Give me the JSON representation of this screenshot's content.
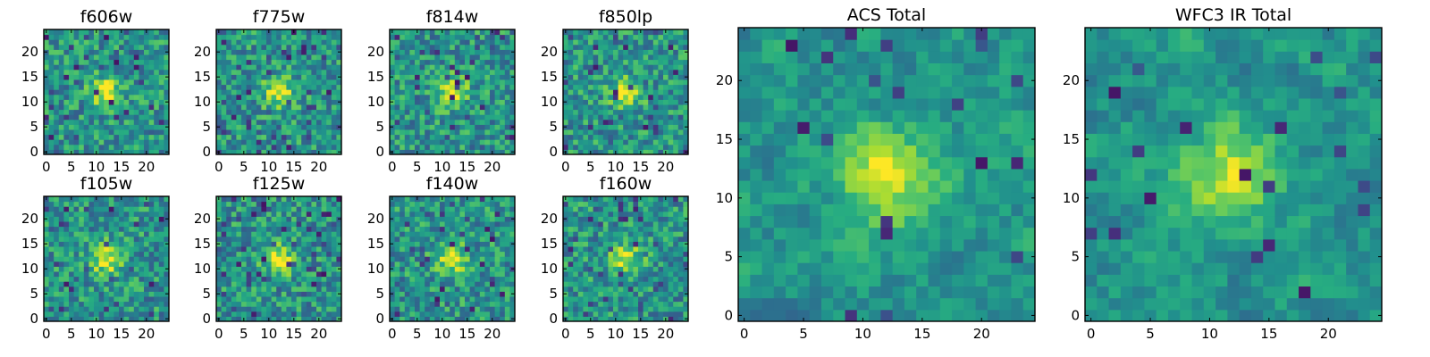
{
  "chart_data": [
    {
      "type": "heatmap",
      "title": "f606w",
      "xlim": [
        0,
        24
      ],
      "ylim": [
        0,
        24
      ],
      "xticks": [
        0,
        5,
        10,
        15,
        20
      ],
      "yticks": [
        0,
        5,
        10,
        15,
        20
      ],
      "grid_size": 25,
      "colormap": "viridis",
      "source_peak": [
        12,
        12
      ],
      "seed": 11
    },
    {
      "type": "heatmap",
      "title": "f775w",
      "xlim": [
        0,
        24
      ],
      "ylim": [
        0,
        24
      ],
      "xticks": [
        0,
        5,
        10,
        15,
        20
      ],
      "yticks": [
        0,
        5,
        10,
        15,
        20
      ],
      "grid_size": 25,
      "colormap": "viridis",
      "source_peak": [
        12,
        12
      ],
      "seed": 23
    },
    {
      "type": "heatmap",
      "title": "f814w",
      "xlim": [
        0,
        24
      ],
      "ylim": [
        0,
        24
      ],
      "xticks": [
        0,
        5,
        10,
        15,
        20
      ],
      "yticks": [
        0,
        5,
        10,
        15,
        20
      ],
      "grid_size": 25,
      "colormap": "viridis",
      "source_peak": [
        12,
        12
      ],
      "seed": 37
    },
    {
      "type": "heatmap",
      "title": "f850lp",
      "xlim": [
        0,
        24
      ],
      "ylim": [
        0,
        24
      ],
      "xticks": [
        0,
        5,
        10,
        15,
        20
      ],
      "yticks": [
        0,
        5,
        10,
        15,
        20
      ],
      "grid_size": 25,
      "colormap": "viridis",
      "source_peak": [
        12,
        12
      ],
      "seed": 41
    },
    {
      "type": "heatmap",
      "title": "f105w",
      "xlim": [
        0,
        24
      ],
      "ylim": [
        0,
        24
      ],
      "xticks": [
        0,
        5,
        10,
        15,
        20
      ],
      "yticks": [
        0,
        5,
        10,
        15,
        20
      ],
      "grid_size": 25,
      "colormap": "viridis",
      "source_peak": [
        12,
        12
      ],
      "seed": 53
    },
    {
      "type": "heatmap",
      "title": "f125w",
      "xlim": [
        0,
        24
      ],
      "ylim": [
        0,
        24
      ],
      "xticks": [
        0,
        5,
        10,
        15,
        20
      ],
      "yticks": [
        0,
        5,
        10,
        15,
        20
      ],
      "grid_size": 25,
      "colormap": "viridis",
      "source_peak": [
        12,
        12
      ],
      "seed": 67
    },
    {
      "type": "heatmap",
      "title": "f140w",
      "xlim": [
        0,
        24
      ],
      "ylim": [
        0,
        24
      ],
      "xticks": [
        0,
        5,
        10,
        15,
        20
      ],
      "yticks": [
        0,
        5,
        10,
        15,
        20
      ],
      "grid_size": 25,
      "colormap": "viridis",
      "source_peak": [
        12,
        12
      ],
      "seed": 79
    },
    {
      "type": "heatmap",
      "title": "f160w",
      "xlim": [
        0,
        24
      ],
      "ylim": [
        0,
        24
      ],
      "xticks": [
        0,
        5,
        10,
        15,
        20
      ],
      "yticks": [
        0,
        5,
        10,
        15,
        20
      ],
      "grid_size": 25,
      "colormap": "viridis",
      "source_peak": [
        12,
        12
      ],
      "seed": 83
    },
    {
      "type": "heatmap",
      "title": "ACS Total",
      "xlim": [
        0,
        24
      ],
      "ylim": [
        0,
        24
      ],
      "xticks": [
        0,
        5,
        10,
        15,
        20
      ],
      "yticks": [
        0,
        5,
        10,
        15,
        20
      ],
      "grid_size": 25,
      "colormap": "viridis",
      "source_peak": [
        12,
        12
      ],
      "seed": 97
    },
    {
      "type": "heatmap",
      "title": "WFC3 IR Total",
      "xlim": [
        0,
        24
      ],
      "ylim": [
        0,
        24
      ],
      "xticks": [
        0,
        5,
        10,
        15,
        20
      ],
      "yticks": [
        0,
        5,
        10,
        15,
        20
      ],
      "grid_size": 25,
      "colormap": "viridis",
      "source_peak": [
        12,
        12
      ],
      "seed": 101
    }
  ]
}
